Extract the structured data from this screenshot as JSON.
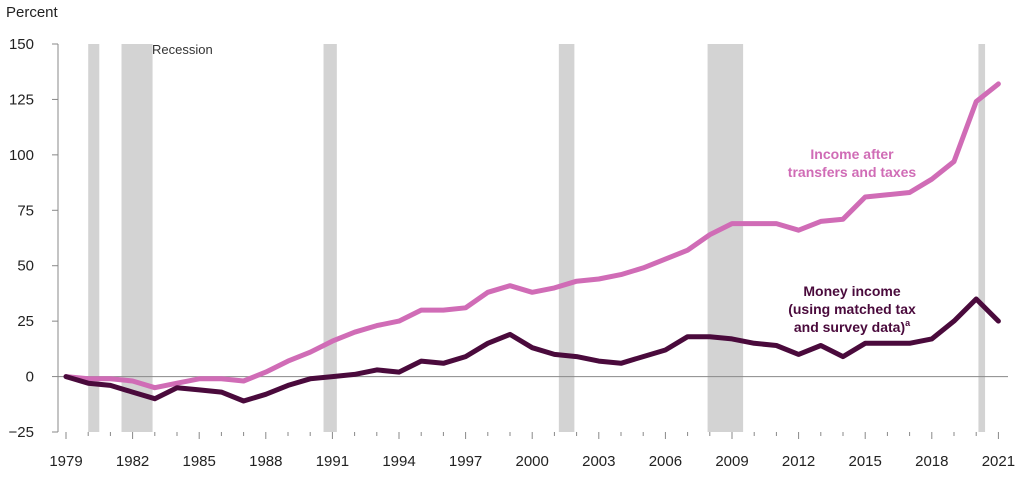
{
  "chart_data": {
    "type": "line",
    "ylabel": "Percent",
    "ylim": [
      -25,
      150
    ],
    "yticks": [
      -25,
      0,
      25,
      50,
      75,
      100,
      125,
      150
    ],
    "xlim": [
      1979,
      2021.5
    ],
    "xticks": [
      1979,
      1982,
      1985,
      1988,
      1991,
      1994,
      1997,
      2000,
      2003,
      2006,
      2009,
      2012,
      2015,
      2018,
      2021
    ],
    "recession_label": "Recession",
    "recessions": [
      {
        "start": 1980.0,
        "end": 1980.5
      },
      {
        "start": 1981.5,
        "end": 1982.9
      },
      {
        "start": 1990.6,
        "end": 1991.2
      },
      {
        "start": 2001.2,
        "end": 2001.9
      },
      {
        "start": 2007.9,
        "end": 2009.5
      },
      {
        "start": 2020.1,
        "end": 2020.4
      }
    ],
    "colors": {
      "transfers": "#d06cb6",
      "money": "#4a0a3c",
      "recession": "#d3d3d3",
      "axis": "#888888"
    },
    "series": [
      {
        "name": "Income after transfers and taxes",
        "label_lines": [
          "Income after",
          "transfers and taxes"
        ],
        "x": [
          1979,
          1980,
          1981,
          1982,
          1983,
          1984,
          1985,
          1986,
          1987,
          1988,
          1989,
          1990,
          1991,
          1992,
          1993,
          1994,
          1995,
          1996,
          1997,
          1998,
          1999,
          2000,
          2001,
          2002,
          2003,
          2004,
          2005,
          2006,
          2007,
          2008,
          2009,
          2010,
          2011,
          2012,
          2013,
          2014,
          2015,
          2016,
          2017,
          2018,
          2019,
          2020,
          2021
        ],
        "values": [
          0,
          -1,
          -1,
          -2,
          -5,
          -3,
          -1,
          -1,
          -2,
          2,
          7,
          11,
          16,
          20,
          23,
          25,
          30,
          30,
          31,
          38,
          41,
          38,
          40,
          43,
          44,
          46,
          49,
          53,
          57,
          64,
          69,
          69,
          69,
          66,
          70,
          71,
          81,
          82,
          83,
          89,
          97,
          124,
          132
        ]
      },
      {
        "name": "Money income (using matched tax and survey data)",
        "label_lines": [
          "Money income",
          "(using matched tax",
          "and survey data)"
        ],
        "label_superscript": "a",
        "x": [
          1979,
          1980,
          1981,
          1982,
          1983,
          1984,
          1985,
          1986,
          1987,
          1988,
          1989,
          1990,
          1991,
          1992,
          1993,
          1994,
          1995,
          1996,
          1997,
          1998,
          1999,
          2000,
          2001,
          2002,
          2003,
          2004,
          2005,
          2006,
          2007,
          2008,
          2009,
          2010,
          2011,
          2012,
          2013,
          2014,
          2015,
          2016,
          2017,
          2018,
          2019,
          2020,
          2021
        ],
        "values": [
          0,
          -3,
          -4,
          -7,
          -10,
          -5,
          -6,
          -7,
          -11,
          -8,
          -4,
          -1,
          0,
          1,
          3,
          2,
          7,
          6,
          9,
          15,
          19,
          13,
          10,
          9,
          7,
          6,
          9,
          12,
          18,
          18,
          17,
          15,
          14,
          10,
          14,
          9,
          15,
          15,
          15,
          17,
          25,
          35,
          25
        ]
      }
    ]
  }
}
